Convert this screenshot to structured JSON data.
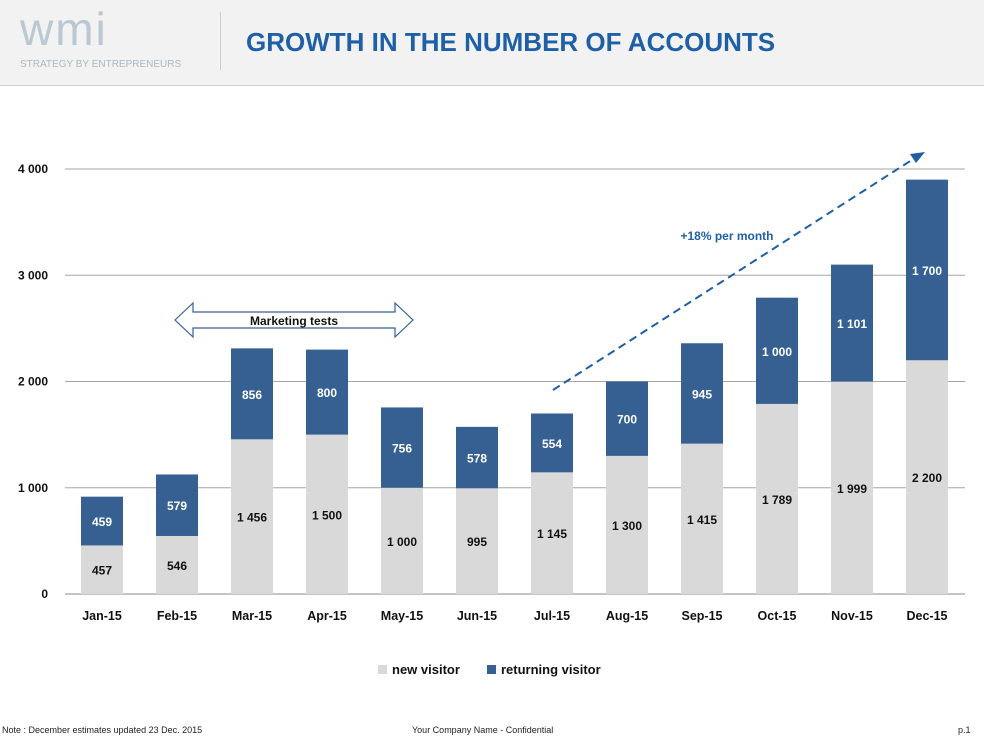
{
  "header": {
    "logo": "wmi",
    "logo_tagline": "STRATEGY BY ENTREPRENEURS",
    "title": "GROWTH IN THE NUMBER OF ACCOUNTS"
  },
  "chart_data": {
    "type": "bar",
    "stacked": true,
    "categories": [
      "Jan-15",
      "Feb-15",
      "Mar-15",
      "Apr-15",
      "May-15",
      "Jun-15",
      "Jul-15",
      "Aug-15",
      "Sep-15",
      "Oct-15",
      "Nov-15",
      "Dec-15"
    ],
    "series": [
      {
        "name": "new visitor",
        "color": "#d9d9d9",
        "values": [
          457,
          546,
          1456,
          1500,
          1000,
          995,
          1145,
          1300,
          1415,
          1789,
          1999,
          2200
        ],
        "labels": [
          "457",
          "546",
          "1 456",
          "1 500",
          "1 000",
          "995",
          "1 145",
          "1 300",
          "1 415",
          "1 789",
          "1 999",
          "2 200"
        ]
      },
      {
        "name": "returning visitor",
        "color": "#366092",
        "values": [
          459,
          579,
          856,
          800,
          756,
          578,
          554,
          700,
          945,
          1000,
          1101,
          1700
        ],
        "labels": [
          "459",
          "579",
          "856",
          "800",
          "756",
          "578",
          "554",
          "700",
          "945",
          "1 000",
          "1 101",
          "1 700"
        ]
      }
    ],
    "ylim": [
      0,
      4000
    ],
    "yticks": [
      0,
      1000,
      2000,
      3000,
      4000
    ],
    "ytick_labels": [
      "0",
      "1 000",
      "2 000",
      "3 000",
      "4 000"
    ],
    "grid": true,
    "legend": "bottom",
    "annotations": {
      "trend": "+18% per month",
      "range": "Marketing tests"
    }
  },
  "footer": {
    "note": "Note : December estimates updated 23 Dec. 2015",
    "center": "Your Company Name - Confidential",
    "page": "p.1"
  }
}
